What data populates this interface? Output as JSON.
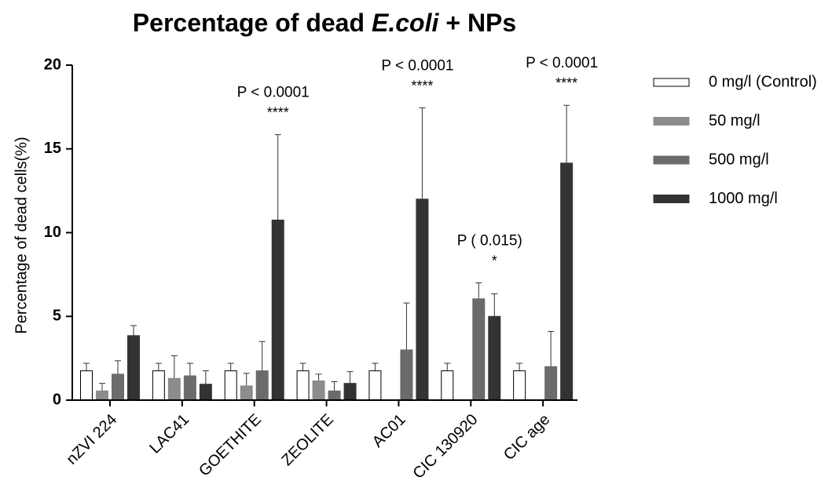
{
  "chart_data": {
    "type": "bar",
    "title": [
      "Percentage of dead",
      "E.coli",
      "+ NPs"
    ],
    "y_label": "Percentage of dead cells(%)",
    "categories": [
      "nZVI 224",
      "LAC41",
      "GOETHITE",
      "ZEOLITE",
      "AC01",
      "CIC 130920",
      "CIC age"
    ],
    "series": [
      {
        "name": "0 mg/l (Control)",
        "color": "#ffffff",
        "values": [
          1.75,
          1.75,
          1.75,
          1.75,
          1.75,
          1.75,
          1.75
        ],
        "errors": [
          0.45,
          0.45,
          0.45,
          0.45,
          0.45,
          0.45,
          0.45
        ]
      },
      {
        "name": "50 mg/l",
        "color": "#8c8c8c",
        "values": [
          0.55,
          1.3,
          0.85,
          1.15,
          null,
          null,
          null
        ],
        "errors": [
          0.45,
          1.35,
          0.75,
          0.4,
          null,
          null,
          null
        ]
      },
      {
        "name": "500 mg/l",
        "color": "#6b6b6b",
        "values": [
          1.55,
          1.45,
          1.75,
          0.55,
          3.0,
          6.05,
          2.0
        ],
        "errors": [
          0.8,
          0.75,
          1.75,
          0.55,
          2.8,
          0.95,
          2.1
        ]
      },
      {
        "name": "1000 mg/l",
        "color": "#333333",
        "values": [
          3.85,
          0.95,
          10.75,
          1.0,
          12.0,
          5.0,
          14.15
        ],
        "errors": [
          0.6,
          0.8,
          5.1,
          0.7,
          5.45,
          1.35,
          3.45
        ]
      }
    ],
    "annotations": [
      null,
      null,
      {
        "p": "P < 0.0001",
        "stars": "****"
      },
      null,
      {
        "p": "P < 0.0001",
        "stars": "****"
      },
      {
        "p": "P ( 0.015)",
        "stars": "*"
      },
      {
        "p": "P <  0.0001",
        "stars": "****"
      }
    ],
    "ylim": [
      0,
      20
    ],
    "yticks": [
      0,
      5,
      10,
      15,
      20
    ],
    "legend": "right"
  }
}
